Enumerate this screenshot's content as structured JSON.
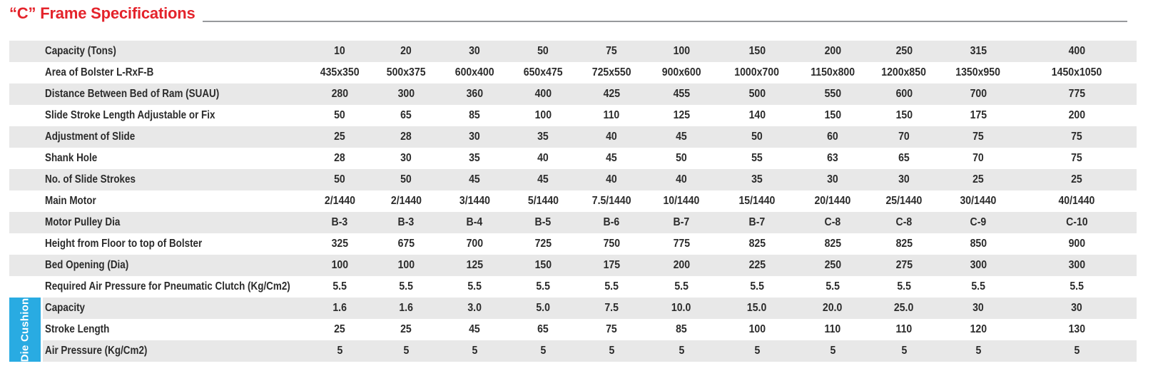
{
  "page_title": "“C” Frame Specifications",
  "die_cushion_label": "Die Cushion",
  "colors": {
    "accent_red": "#e4232b",
    "die_cushion_blue": "#29abe2",
    "stripe_gray": "#e8e8e8",
    "rule_gray": "#97999c",
    "text_dark": "#2b2b2b"
  },
  "table": {
    "rows": [
      {
        "label": "Capacity (Tons)",
        "values": [
          "10",
          "20",
          "30",
          "50",
          "75",
          "100",
          "150",
          "200",
          "250",
          "315",
          "400"
        ]
      },
      {
        "label": "Area of Bolster L-RxF-B",
        "values": [
          "435x350",
          "500x375",
          "600x400",
          "650x475",
          "725x550",
          "900x600",
          "1000x700",
          "1150x800",
          "1200x850",
          "1350x950",
          "1450x1050"
        ]
      },
      {
        "label": "Distance Between Bed of Ram (SUAU)",
        "values": [
          "280",
          "300",
          "360",
          "400",
          "425",
          "455",
          "500",
          "550",
          "600",
          "700",
          "775"
        ]
      },
      {
        "label": "Slide Stroke Length Adjustable or Fix",
        "values": [
          "50",
          "65",
          "85",
          "100",
          "110",
          "125",
          "140",
          "150",
          "150",
          "175",
          "200"
        ]
      },
      {
        "label": "Adjustment of Slide",
        "values": [
          "25",
          "28",
          "30",
          "35",
          "40",
          "45",
          "50",
          "60",
          "70",
          "75",
          "75"
        ]
      },
      {
        "label": "Shank Hole",
        "values": [
          "28",
          "30",
          "35",
          "40",
          "45",
          "50",
          "55",
          "63",
          "65",
          "70",
          "75"
        ]
      },
      {
        "label": "No. of Slide Strokes",
        "values": [
          "50",
          "50",
          "45",
          "45",
          "40",
          "40",
          "35",
          "30",
          "30",
          "25",
          "25"
        ]
      },
      {
        "label": "Main Motor",
        "values": [
          "2/1440",
          "2/1440",
          "3/1440",
          "5/1440",
          "7.5/1440",
          "10/1440",
          "15/1440",
          "20/1440",
          "25/1440",
          "30/1440",
          "40/1440"
        ]
      },
      {
        "label": "Motor Pulley Dia",
        "values": [
          "B-3",
          "B-3",
          "B-4",
          "B-5",
          "B-6",
          "B-7",
          "B-7",
          "C-8",
          "C-8",
          "C-9",
          "C-10"
        ]
      },
      {
        "label": "Height from Floor to top of Bolster",
        "values": [
          "325",
          "675",
          "700",
          "725",
          "750",
          "775",
          "825",
          "825",
          "825",
          "850",
          "900"
        ]
      },
      {
        "label": "Bed Opening (Dia)",
        "values": [
          "100",
          "100",
          "125",
          "150",
          "175",
          "200",
          "225",
          "250",
          "275",
          "300",
          "300"
        ]
      },
      {
        "label": "Required Air Pressure for Pneumatic Clutch (Kg/Cm2)",
        "values": [
          "5.5",
          "5.5",
          "5.5",
          "5.5",
          "5.5",
          "5.5",
          "5.5",
          "5.5",
          "5.5",
          "5.5",
          "5.5"
        ]
      },
      {
        "label": "Capacity",
        "section": "die-cushion",
        "values": [
          "1.6",
          "1.6",
          "3.0",
          "5.0",
          "7.5",
          "10.0",
          "15.0",
          "20.0",
          "25.0",
          "30",
          "30"
        ]
      },
      {
        "label": "Stroke Length",
        "section": "die-cushion",
        "values": [
          "25",
          "25",
          "45",
          "65",
          "75",
          "85",
          "100",
          "110",
          "110",
          "120",
          "130"
        ]
      },
      {
        "label": "Air Pressure (Kg/Cm2)",
        "section": "die-cushion",
        "values": [
          "5",
          "5",
          "5",
          "5",
          "5",
          "5",
          "5",
          "5",
          "5",
          "5",
          "5"
        ]
      }
    ]
  }
}
